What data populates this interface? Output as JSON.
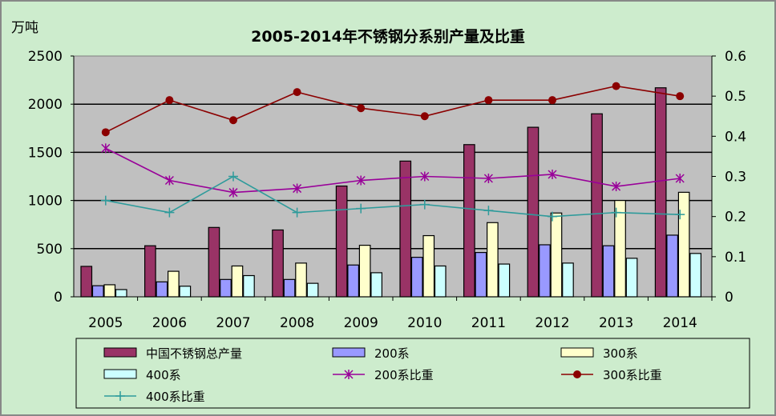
{
  "chart_data": {
    "type": "bar",
    "title": "2005-2014年不锈钢分系别产量及比重",
    "ylabel": "万吨",
    "ylim": [
      0,
      2500
    ],
    "y2lim": [
      0,
      0.6
    ],
    "yticks": [
      "0",
      "500",
      "1000",
      "1500",
      "2000",
      "2500"
    ],
    "y2ticks": [
      "0",
      "0.1",
      "0.2",
      "0.3",
      "0.4",
      "0.5",
      "0.6"
    ],
    "categories": [
      "2005",
      "2006",
      "2007",
      "2008",
      "2009",
      "2010",
      "2011",
      "2012",
      "2013",
      "2014"
    ],
    "grid": true,
    "legend_position": "bottom",
    "series": [
      {
        "name": "中国不锈钢总产量",
        "kind": "bar",
        "axis": "left",
        "color": "#993366",
        "values": [
          316,
          530,
          720,
          694,
          1150,
          1409,
          1580,
          1760,
          1900,
          2170
        ]
      },
      {
        "name": "200系",
        "kind": "bar",
        "axis": "left",
        "color": "#9999ff",
        "values": [
          115,
          155,
          180,
          180,
          330,
          410,
          460,
          540,
          530,
          640
        ]
      },
      {
        "name": "300系",
        "kind": "bar",
        "axis": "left",
        "color": "#ffffcc",
        "values": [
          125,
          265,
          320,
          350,
          535,
          635,
          770,
          870,
          1000,
          1085
        ]
      },
      {
        "name": "400系",
        "kind": "bar",
        "axis": "left",
        "color": "#ccffff",
        "values": [
          75,
          110,
          220,
          140,
          250,
          320,
          340,
          350,
          400,
          450
        ]
      },
      {
        "name": "200系比重",
        "kind": "line",
        "marker": "star",
        "axis": "right",
        "color": "#990099",
        "values": [
          0.37,
          0.29,
          0.26,
          0.27,
          0.29,
          0.3,
          0.295,
          0.305,
          0.275,
          0.295
        ]
      },
      {
        "name": "300系比重",
        "kind": "line",
        "marker": "dot",
        "axis": "right",
        "color": "#8b0000",
        "values": [
          0.41,
          0.49,
          0.44,
          0.51,
          0.47,
          0.45,
          0.49,
          0.49,
          0.525,
          0.5
        ]
      },
      {
        "name": "400系比重",
        "kind": "line",
        "marker": "plus",
        "axis": "right",
        "color": "#2e9b9b",
        "values": [
          0.24,
          0.21,
          0.3,
          0.21,
          0.22,
          0.23,
          0.215,
          0.2,
          0.21,
          0.205
        ]
      }
    ]
  }
}
